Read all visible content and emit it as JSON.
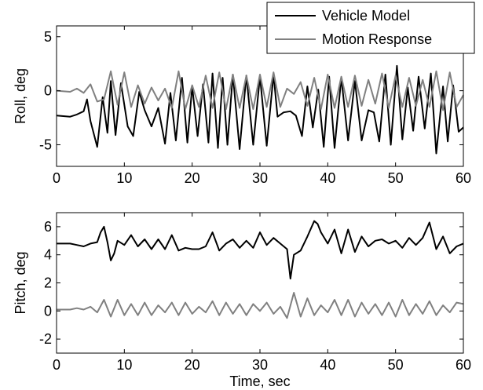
{
  "chart_data": [
    {
      "type": "line",
      "title": "",
      "xlabel": "",
      "ylabel": "Roll, deg",
      "xlim": [
        0,
        60
      ],
      "ylim": [
        -7,
        6
      ],
      "xticks": [
        0,
        10,
        20,
        30,
        40,
        50,
        60
      ],
      "yticks": [
        -5,
        0,
        5
      ],
      "grid": false,
      "legend": {
        "placement": "top-right",
        "entries": [
          {
            "label": "Vehicle Model",
            "color": "#000000"
          },
          {
            "label": "Motion Response",
            "color": "#808080"
          }
        ]
      },
      "series": [
        {
          "name": "Vehicle Model",
          "color": "#000000",
          "x": [
            0,
            2,
            3,
            4,
            4.5,
            5,
            6,
            6.8,
            7.5,
            8,
            8.7,
            9.5,
            10.5,
            11.3,
            12.2,
            13,
            14,
            15,
            16,
            16.8,
            17.6,
            18.5,
            19.3,
            20,
            20.8,
            21.6,
            22.4,
            23,
            23.8,
            24.5,
            25.2,
            26,
            27,
            28,
            29,
            30,
            31,
            32,
            32.6,
            33.5,
            34.5,
            35.3,
            36.2,
            37,
            37.8,
            38.6,
            39.4,
            40.2,
            41,
            42,
            43,
            44,
            45,
            46,
            46.8,
            47.6,
            48.5,
            49.3,
            50.2,
            51,
            51.8,
            52.6,
            53.4,
            54.3,
            55.2,
            56,
            57,
            57.7,
            58.5,
            59.3,
            60
          ],
          "y": [
            -2.3,
            -2.4,
            -2.2,
            -1.9,
            -0.8,
            -2.8,
            -5.2,
            -0.6,
            -3.9,
            0.9,
            -4.1,
            0.7,
            -3.3,
            -4.2,
            -0.1,
            -1.8,
            -3.3,
            -1.6,
            -4.9,
            -0.2,
            -4.6,
            1.2,
            -4.8,
            0.4,
            -4.2,
            0.6,
            -4.8,
            1.6,
            -5.3,
            1.2,
            -5.0,
            1.5,
            -5.4,
            1.4,
            -5.0,
            1.3,
            -5.1,
            1.5,
            -2.4,
            -2.0,
            -1.9,
            -2.3,
            -4.2,
            0.4,
            -3.4,
            0.1,
            -5.2,
            1.3,
            -5.3,
            1.2,
            -4.6,
            0.9,
            -4.6,
            -1.8,
            -2.0,
            -4.7,
            1.5,
            -5.0,
            2.3,
            -4.5,
            0.3,
            -3.7,
            1.3,
            -3.5,
            1.6,
            -5.8,
            0.4,
            -4.7,
            0.5,
            -3.8,
            -3.4
          ]
        },
        {
          "name": "Motion Response",
          "color": "#808080",
          "x": [
            0,
            2,
            3,
            4,
            5,
            6,
            7,
            8,
            9,
            10,
            11,
            12,
            13,
            14,
            15,
            16,
            17,
            18,
            19,
            20,
            21,
            22,
            23,
            24,
            25,
            26,
            27,
            28,
            29,
            30,
            31,
            32,
            33,
            34,
            35,
            36,
            37,
            38,
            39,
            40,
            41,
            42,
            43,
            44,
            45,
            46,
            47,
            48,
            49,
            50,
            51,
            52,
            53,
            54,
            55,
            56,
            57,
            58,
            59,
            60
          ],
          "y": [
            0.0,
            -0.1,
            0.2,
            -0.2,
            0.6,
            -1.0,
            -0.8,
            1.8,
            -1.3,
            1.7,
            -1.5,
            0.5,
            -1.2,
            0.3,
            -0.9,
            0.2,
            -1.6,
            1.8,
            -1.7,
            0.5,
            -1.5,
            1.4,
            -1.6,
            1.7,
            -1.7,
            1.5,
            -1.6,
            1.4,
            -1.7,
            1.5,
            -1.5,
            1.7,
            -1.5,
            0.2,
            -0.3,
            0.8,
            -1.4,
            1.2,
            -1.7,
            1.5,
            -1.6,
            1.3,
            -1.5,
            1.4,
            -1.4,
            1.0,
            -1.2,
            1.6,
            -1.6,
            1.4,
            -1.5,
            1.2,
            -1.4,
            1.0,
            -1.5,
            1.8,
            -1.8,
            1.7,
            -1.5,
            -0.4
          ]
        }
      ]
    },
    {
      "type": "line",
      "title": "",
      "xlabel": "Time, sec",
      "ylabel": "Pitch, deg",
      "xlim": [
        0,
        60
      ],
      "ylim": [
        -3,
        7
      ],
      "xticks": [
        0,
        10,
        20,
        30,
        40,
        50,
        60
      ],
      "yticks": [
        -2,
        0,
        2,
        4,
        6
      ],
      "grid": false,
      "series": [
        {
          "name": "Vehicle Model",
          "color": "#000000",
          "x": [
            0,
            2,
            3,
            4,
            5,
            6,
            6.5,
            7,
            7.5,
            8,
            8.5,
            9,
            10,
            11,
            12,
            13,
            14,
            15,
            16,
            17,
            18,
            19,
            20,
            21,
            22,
            23,
            24,
            25,
            26,
            27,
            28,
            29,
            30,
            31,
            32,
            33,
            34,
            34.5,
            35,
            36,
            37,
            38,
            38.5,
            39,
            40,
            41,
            42,
            43,
            44,
            45,
            46,
            47,
            48,
            49,
            50,
            51,
            52,
            53,
            54,
            55,
            56,
            57,
            58,
            59,
            60
          ],
          "y": [
            4.8,
            4.8,
            4.7,
            4.6,
            4.8,
            4.9,
            5.6,
            6.0,
            4.9,
            3.6,
            4.1,
            5.0,
            4.7,
            5.4,
            4.6,
            5.1,
            4.4,
            5.1,
            4.4,
            5.4,
            4.3,
            4.5,
            4.4,
            4.4,
            4.6,
            5.6,
            4.3,
            4.8,
            5.1,
            4.5,
            5.0,
            4.5,
            5.6,
            4.7,
            5.2,
            4.8,
            4.4,
            2.3,
            4.0,
            4.3,
            5.3,
            6.4,
            6.2,
            5.6,
            4.8,
            5.8,
            4.1,
            5.8,
            4.2,
            5.3,
            4.6,
            5.0,
            5.1,
            4.8,
            5.0,
            4.5,
            5.2,
            4.7,
            5.2,
            6.3,
            4.4,
            5.3,
            4.1,
            4.6,
            4.8
          ]
        },
        {
          "name": "Motion Response",
          "color": "#808080",
          "x": [
            0,
            2,
            3,
            4,
            5,
            6,
            7,
            8,
            9,
            10,
            11,
            12,
            13,
            14,
            15,
            16,
            17,
            18,
            19,
            20,
            21,
            22,
            23,
            24,
            25,
            26,
            27,
            28,
            29,
            30,
            31,
            32,
            33,
            34,
            35,
            36,
            37,
            38,
            39,
            40,
            41,
            42,
            43,
            44,
            45,
            46,
            47,
            48,
            49,
            50,
            51,
            52,
            53,
            54,
            55,
            56,
            57,
            58,
            59,
            60
          ],
          "y": [
            0.1,
            0.1,
            0.2,
            0.1,
            0.3,
            -0.1,
            0.8,
            -0.4,
            0.8,
            -0.3,
            0.5,
            -0.3,
            0.6,
            -0.3,
            0.4,
            -0.1,
            0.6,
            -0.3,
            0.6,
            -0.2,
            0.3,
            -0.1,
            0.7,
            -0.3,
            0.6,
            -0.2,
            0.5,
            -0.3,
            0.5,
            0.0,
            0.6,
            -0.2,
            0.3,
            -0.5,
            1.3,
            -0.4,
            0.9,
            -0.3,
            0.4,
            -0.1,
            0.8,
            -0.3,
            0.8,
            -0.4,
            0.6,
            -0.2,
            0.5,
            -0.3,
            0.6,
            -0.4,
            0.8,
            -0.3,
            0.5,
            -0.2,
            0.7,
            -0.3,
            0.4,
            -0.1,
            0.6,
            0.5
          ]
        }
      ]
    }
  ]
}
